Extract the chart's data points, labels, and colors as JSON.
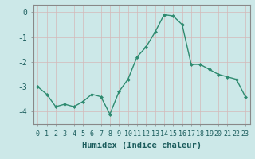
{
  "x": [
    0,
    1,
    2,
    3,
    4,
    5,
    6,
    7,
    8,
    9,
    10,
    11,
    12,
    13,
    14,
    15,
    16,
    17,
    18,
    19,
    20,
    21,
    22,
    23
  ],
  "y": [
    -3.0,
    -3.3,
    -3.8,
    -3.7,
    -3.8,
    -3.6,
    -3.3,
    -3.4,
    -4.1,
    -3.2,
    -2.7,
    -1.8,
    -1.4,
    -0.8,
    -0.1,
    -0.15,
    -0.5,
    -2.1,
    -2.1,
    -2.3,
    -2.5,
    -2.6,
    -2.7,
    -3.4
  ],
  "xlabel": "Humidex (Indice chaleur)",
  "ylim": [
    -4.5,
    0.3
  ],
  "xlim": [
    -0.5,
    23.5
  ],
  "yticks": [
    0,
    -1,
    -2,
    -3,
    -4
  ],
  "xticks": [
    0,
    1,
    2,
    3,
    4,
    5,
    6,
    7,
    8,
    9,
    10,
    11,
    12,
    13,
    14,
    15,
    16,
    17,
    18,
    19,
    20,
    21,
    22,
    23
  ],
  "line_color": "#2e8b70",
  "marker": "D",
  "marker_size": 2.0,
  "bg_color": "#cce8e8",
  "grid_color": "#e8e8e8",
  "axis_color": "#888888",
  "tick_color": "#1a5c5c",
  "xlabel_fontsize": 7.5,
  "ytick_fontsize": 7.0,
  "xtick_fontsize": 6.0,
  "linewidth": 1.0
}
